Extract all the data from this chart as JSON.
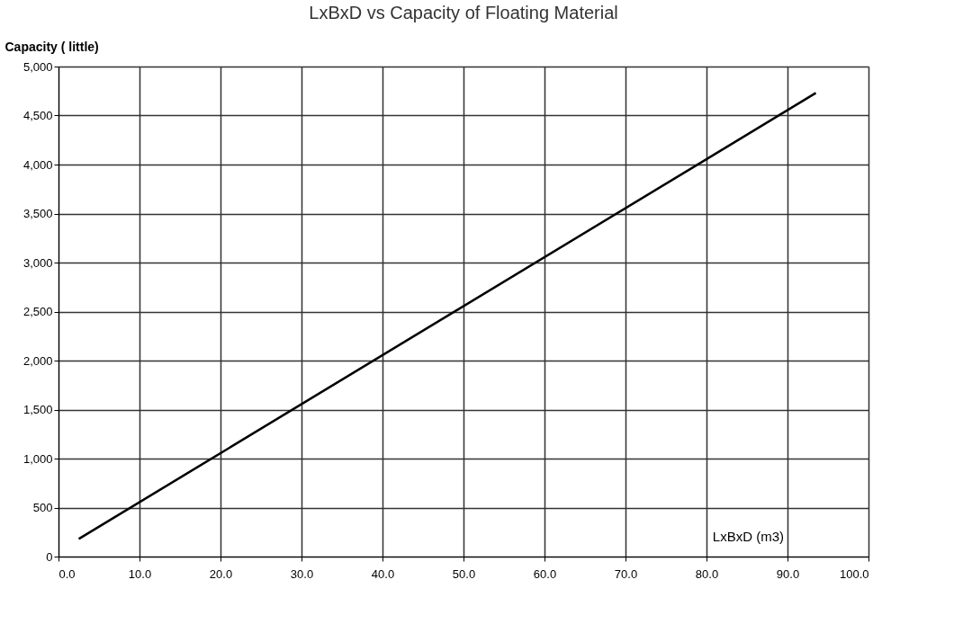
{
  "chart_data": {
    "type": "line",
    "title": "LxBxD  vs  Capacity of Floating Material",
    "xlabel": "LxBxD (m3)",
    "ylabel": "Capacity ( little)",
    "x": [
      2.5,
      93.5
    ],
    "series": [
      {
        "color": "#000000",
        "values": [
          180,
          4730
        ]
      }
    ],
    "xlim": [
      0,
      100
    ],
    "xticks": [
      {
        "value": 0,
        "label": "0.0"
      },
      {
        "value": 10,
        "label": "10.0"
      },
      {
        "value": 20,
        "label": "20.0"
      },
      {
        "value": 30,
        "label": "30.0"
      },
      {
        "value": 40,
        "label": "40.0"
      },
      {
        "value": 50,
        "label": "50.0"
      },
      {
        "value": 60,
        "label": "60.0"
      },
      {
        "value": 70,
        "label": "70.0"
      },
      {
        "value": 80,
        "label": "80.0"
      },
      {
        "value": 90,
        "label": "90.0"
      },
      {
        "value": 100,
        "label": "100.0"
      }
    ],
    "ylim": [
      0,
      5000
    ],
    "yticks": [
      0,
      500,
      {
        "value": 1000,
        "label": "1,000"
      },
      {
        "value": 1500,
        "label": "1,500"
      },
      {
        "value": 2000,
        "label": "2,000"
      },
      {
        "value": 2500,
        "label": "2,500"
      },
      {
        "value": 3000,
        "label": "3,000"
      },
      {
        "value": 3500,
        "label": "3,500"
      },
      {
        "value": 4000,
        "label": "4,000"
      },
      {
        "value": 4500,
        "label": "4,500"
      },
      {
        "value": 5000,
        "label": "5,000"
      }
    ],
    "grid": true,
    "marker": "none",
    "line_style": "solid"
  }
}
